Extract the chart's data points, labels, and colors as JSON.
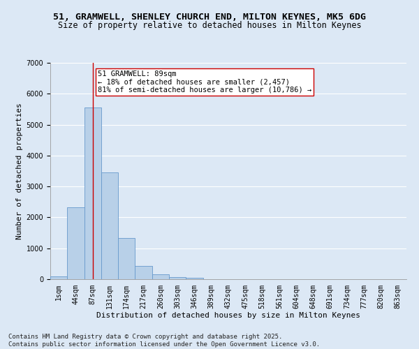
{
  "title_line1": "51, GRAMWELL, SHENLEY CHURCH END, MILTON KEYNES, MK5 6DG",
  "title_line2": "Size of property relative to detached houses in Milton Keynes",
  "xlabel": "Distribution of detached houses by size in Milton Keynes",
  "ylabel": "Number of detached properties",
  "categories": [
    "1sqm",
    "44sqm",
    "87sqm",
    "131sqm",
    "174sqm",
    "217sqm",
    "260sqm",
    "303sqm",
    "346sqm",
    "389sqm",
    "432sqm",
    "475sqm",
    "518sqm",
    "561sqm",
    "604sqm",
    "648sqm",
    "691sqm",
    "734sqm",
    "777sqm",
    "820sqm",
    "863sqm"
  ],
  "bar_heights": [
    100,
    2320,
    5550,
    3450,
    1330,
    430,
    165,
    75,
    35,
    0,
    0,
    0,
    0,
    0,
    0,
    0,
    0,
    0,
    0,
    0,
    0
  ],
  "bar_color": "#b8d0e8",
  "bar_edge_color": "#6699cc",
  "vline_x_index": 2,
  "vline_color": "#cc0000",
  "annotation_text": "51 GRAMWELL: 89sqm\n← 18% of detached houses are smaller (2,457)\n81% of semi-detached houses are larger (10,786) →",
  "annotation_box_color": "#ffffff",
  "annotation_box_edge": "#cc0000",
  "ylim": [
    0,
    7000
  ],
  "yticks": [
    0,
    1000,
    2000,
    3000,
    4000,
    5000,
    6000,
    7000
  ],
  "background_color": "#dce8f5",
  "plot_bg_color": "#dce8f5",
  "grid_color": "#ffffff",
  "footer_line1": "Contains HM Land Registry data © Crown copyright and database right 2025.",
  "footer_line2": "Contains public sector information licensed under the Open Government Licence v3.0.",
  "title_fontsize": 9.5,
  "subtitle_fontsize": 8.5,
  "axis_label_fontsize": 8,
  "tick_fontsize": 7,
  "annotation_fontsize": 7.5,
  "footer_fontsize": 6.5
}
